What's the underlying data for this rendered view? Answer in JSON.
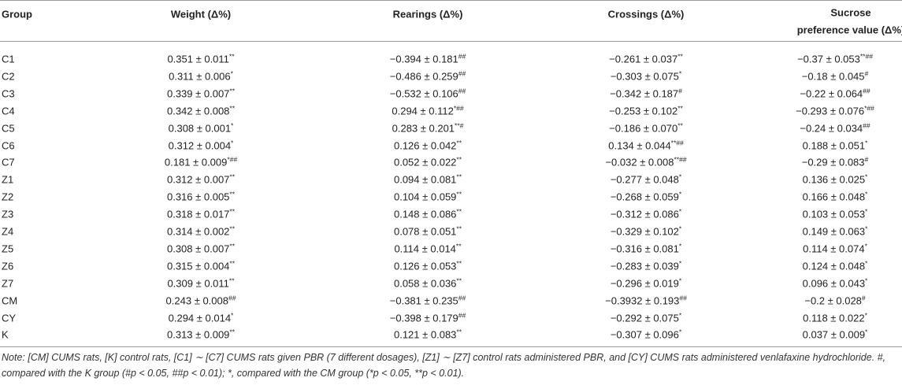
{
  "table": {
    "columns": [
      "Group",
      "Weight (Δ%)",
      "Rearings (Δ%)",
      "Crossings (Δ%)",
      [
        "Sucrose",
        "preference value (Δ%)"
      ]
    ],
    "rows": [
      [
        "C1",
        {
          "v": "0.351 ± 0.011",
          "sup": "**"
        },
        {
          "v": "−0.394 ± 0.181",
          "sup": "##"
        },
        {
          "v": "−0.261 ± 0.037",
          "sup": "**"
        },
        {
          "v": "−0.37 ± 0.053",
          "sup": "**##"
        }
      ],
      [
        "C2",
        {
          "v": "0.311 ± 0.006",
          "sup": "*"
        },
        {
          "v": "−0.486 ± 0.259",
          "sup": "##"
        },
        {
          "v": "−0.303 ± 0.075",
          "sup": "*"
        },
        {
          "v": "−0.18 ± 0.045",
          "sup": "#"
        }
      ],
      [
        "C3",
        {
          "v": "0.339 ± 0.007",
          "sup": "**"
        },
        {
          "v": "−0.532 ± 0.106",
          "sup": "##"
        },
        {
          "v": "−0.342 ± 0.187",
          "sup": "#"
        },
        {
          "v": "−0.22 ± 0.064",
          "sup": "##"
        }
      ],
      [
        "C4",
        {
          "v": "0.342 ± 0.008",
          "sup": "**"
        },
        {
          "v": "0.294 ± 0.112",
          "sup": "*##"
        },
        {
          "v": "−0.253 ± 0.102",
          "sup": "**"
        },
        {
          "v": "−0.293 ± 0.076",
          "sup": "*##"
        }
      ],
      [
        "C5",
        {
          "v": "0.308 ± 0.001",
          "sup": "*"
        },
        {
          "v": "0.283 ± 0.201",
          "sup": "**#"
        },
        {
          "v": "−0.186 ± 0.070",
          "sup": "**"
        },
        {
          "v": "−0.24 ± 0.034",
          "sup": "##"
        }
      ],
      [
        "C6",
        {
          "v": "0.312 ± 0.004",
          "sup": "*"
        },
        {
          "v": "0.126 ± 0.042",
          "sup": "**"
        },
        {
          "v": "0.134 ± 0.044",
          "sup": "**##"
        },
        {
          "v": "0.188 ± 0.051",
          "sup": "*"
        }
      ],
      [
        "C7",
        {
          "v": "0.181 ± 0.009",
          "sup": "*##"
        },
        {
          "v": "0.052 ± 0.022",
          "sup": "**"
        },
        {
          "v": "−0.032 ± 0.008",
          "sup": "**##"
        },
        {
          "v": "−0.29 ± 0.083",
          "sup": "#"
        }
      ],
      [
        "Z1",
        {
          "v": "0.312 ± 0.007",
          "sup": "**"
        },
        {
          "v": "0.094 ± 0.081",
          "sup": "**"
        },
        {
          "v": "−0.277 ± 0.048",
          "sup": "*"
        },
        {
          "v": "0.136 ± 0.025",
          "sup": "*"
        }
      ],
      [
        "Z2",
        {
          "v": "0.316 ± 0.005",
          "sup": "**"
        },
        {
          "v": "0.104 ± 0.059",
          "sup": "**"
        },
        {
          "v": "−0.268 ± 0.059",
          "sup": "*"
        },
        {
          "v": "0.166 ± 0.048",
          "sup": "*"
        }
      ],
      [
        "Z3",
        {
          "v": "0.318 ± 0.017",
          "sup": "**"
        },
        {
          "v": "0.148 ± 0.086",
          "sup": "**"
        },
        {
          "v": "−0.312 ± 0.086",
          "sup": "*"
        },
        {
          "v": "0.103 ± 0.053",
          "sup": "*"
        }
      ],
      [
        "Z4",
        {
          "v": "0.314 ± 0.002",
          "sup": "**"
        },
        {
          "v": "0.078 ± 0.051",
          "sup": "**"
        },
        {
          "v": "−0.329 ± 0.102",
          "sup": "*"
        },
        {
          "v": "0.149 ± 0.063",
          "sup": "*"
        }
      ],
      [
        "Z5",
        {
          "v": "0.308 ± 0.007",
          "sup": "**"
        },
        {
          "v": "0.114 ± 0.014",
          "sup": "**"
        },
        {
          "v": "−0.316 ± 0.081",
          "sup": "*"
        },
        {
          "v": "0.114 ± 0.074",
          "sup": "*"
        }
      ],
      [
        "Z6",
        {
          "v": "0.315 ± 0.004",
          "sup": "**"
        },
        {
          "v": "0.126 ± 0.053",
          "sup": "**"
        },
        {
          "v": "−0.283 ± 0.039",
          "sup": "*"
        },
        {
          "v": "0.124 ± 0.048",
          "sup": "*"
        }
      ],
      [
        "Z7",
        {
          "v": "0.309 ± 0.011",
          "sup": "**"
        },
        {
          "v": "0.058 ± 0.036",
          "sup": "**"
        },
        {
          "v": "−0.296 ± 0.019",
          "sup": "*"
        },
        {
          "v": "0.096 ± 0.043",
          "sup": "*"
        }
      ],
      [
        "CM",
        {
          "v": "0.243 ± 0.008",
          "sup": "##"
        },
        {
          "v": "−0.381 ± 0.235",
          "sup": "##"
        },
        {
          "v": "−0.3932 ± 0.193",
          "sup": "##"
        },
        {
          "v": "−0.2 ± 0.028",
          "sup": "#"
        }
      ],
      [
        "CY",
        {
          "v": "0.294 ± 0.014",
          "sup": "*"
        },
        {
          "v": "−0.398 ± 0.179",
          "sup": "##"
        },
        {
          "v": "−0.292 ± 0.075",
          "sup": "*"
        },
        {
          "v": "0.118 ± 0.022",
          "sup": "*"
        }
      ],
      [
        "K",
        {
          "v": "0.313 ± 0.009",
          "sup": "**"
        },
        {
          "v": "0.121 ± 0.083",
          "sup": "**"
        },
        {
          "v": "−0.307 ± 0.096",
          "sup": "*"
        },
        {
          "v": "0.037 ± 0.009",
          "sup": "*"
        }
      ]
    ],
    "note": "Note: [CM] CUMS rats, [K] control rats, [C1] ∼ [C7] CUMS rats given PBR (7 different dosages), [Z1] ∼ [Z7] control rats administered PBR, and [CY] CUMS rats administered venlafaxine hydrochloride. #, compared with the K group (#p < 0.05, ##p < 0.01); *, compared with the CM group (*p < 0.05, **p < 0.01)."
  }
}
